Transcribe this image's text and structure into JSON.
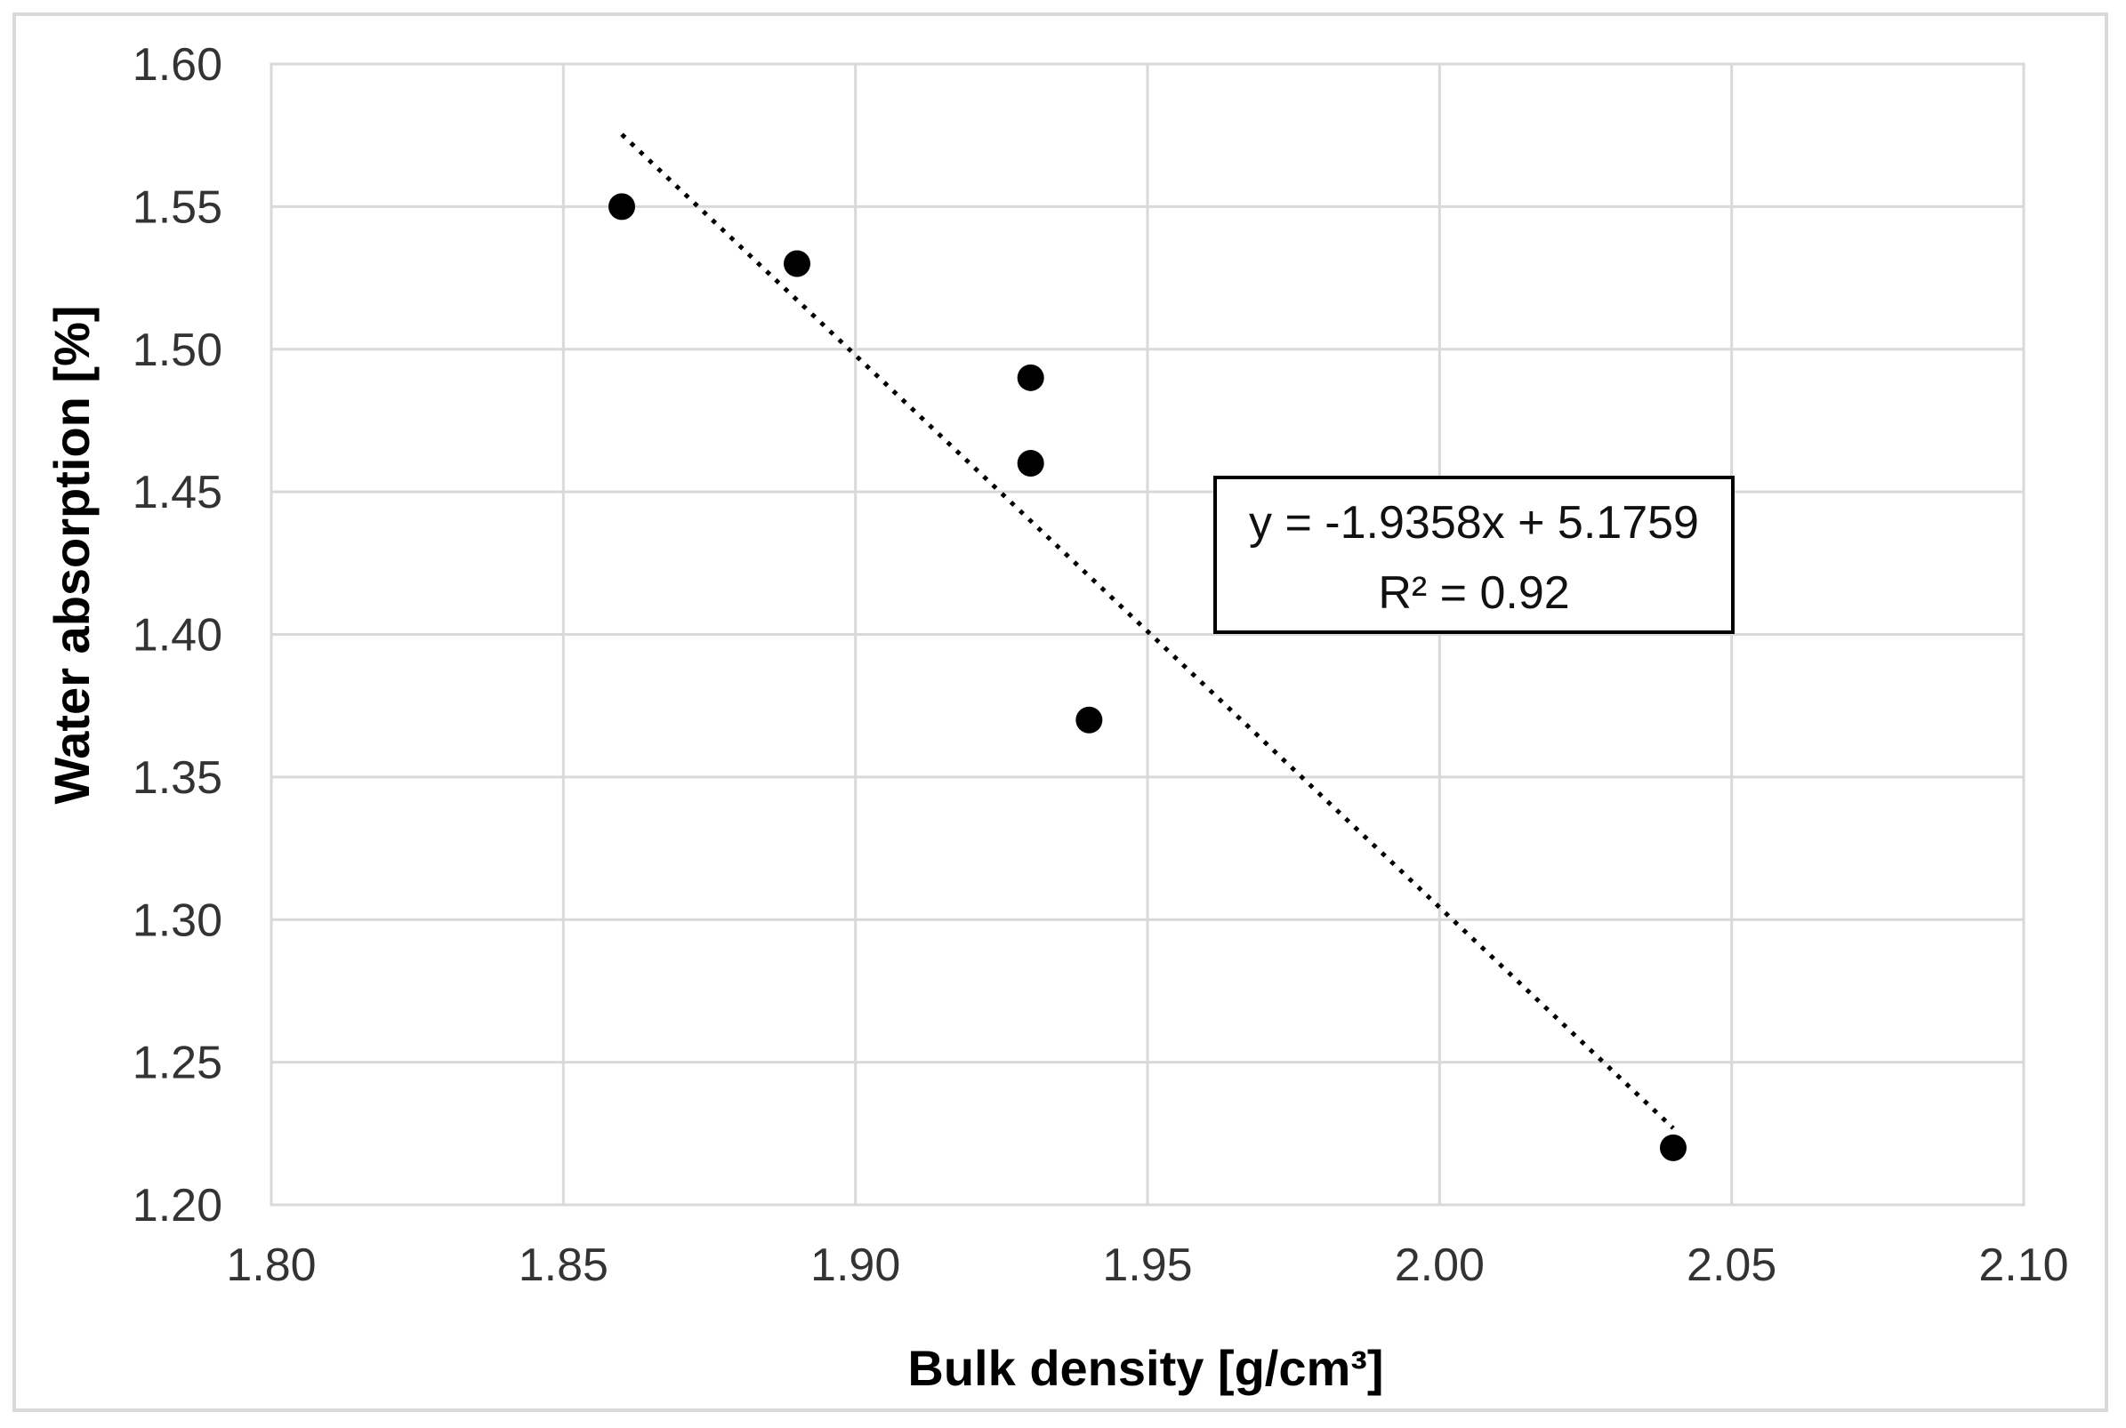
{
  "chart_data": {
    "type": "scatter",
    "xlabel": "Bulk density [g/cm³]",
    "ylabel": "Water absorption [%]",
    "xlim": [
      1.8,
      2.1
    ],
    "ylim": [
      1.2,
      1.6
    ],
    "x_ticks": [
      "1.80",
      "1.85",
      "1.90",
      "1.95",
      "2.00",
      "2.05",
      "2.10"
    ],
    "y_ticks": [
      "1.20",
      "1.25",
      "1.30",
      "1.35",
      "1.40",
      "1.45",
      "1.50",
      "1.55",
      "1.60"
    ],
    "grid": true,
    "series": [
      {
        "points": [
          {
            "x": 1.86,
            "y": 1.55
          },
          {
            "x": 1.89,
            "y": 1.53
          },
          {
            "x": 1.93,
            "y": 1.49
          },
          {
            "x": 1.93,
            "y": 1.46
          },
          {
            "x": 1.94,
            "y": 1.37
          },
          {
            "x": 2.04,
            "y": 1.22
          }
        ],
        "color": "#000000"
      }
    ],
    "trendline": {
      "type": "linear",
      "slope": -1.9358,
      "intercept": 5.1759,
      "x_range": [
        1.86,
        2.04
      ],
      "style": "dotted"
    },
    "annotation": {
      "equation": "y = -1.9358x + 5.1759",
      "r2": "R² = 0.92"
    }
  }
}
